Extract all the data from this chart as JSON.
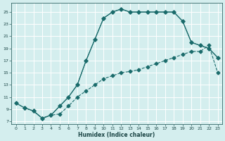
{
  "xlabel": "Humidex (Indice chaleur)",
  "bg_color": "#d4eeee",
  "line_color": "#1a6b6b",
  "grid_color": "#ffffff",
  "grid_minor_color": "#c8e4e4",
  "xlim": [
    -0.5,
    23.5
  ],
  "ylim": [
    6.5,
    26.5
  ],
  "xticks": [
    0,
    1,
    2,
    3,
    4,
    5,
    6,
    7,
    8,
    9,
    10,
    11,
    12,
    13,
    14,
    15,
    16,
    17,
    18,
    19,
    20,
    21,
    22,
    23
  ],
  "yticks": [
    7,
    9,
    11,
    13,
    15,
    17,
    19,
    21,
    23,
    25
  ],
  "curve1_x": [
    0,
    1,
    2,
    3,
    4,
    5,
    6,
    7,
    8,
    9,
    10,
    11,
    12,
    13,
    14,
    15,
    16,
    17,
    18,
    19,
    20,
    21,
    22,
    23
  ],
  "curve1_y": [
    10,
    9.2,
    8.7,
    7.5,
    8.0,
    8.2,
    9.5,
    11,
    12,
    13,
    14,
    14.5,
    15,
    15.2,
    15.5,
    16,
    16.5,
    17,
    17.5,
    18,
    18.5,
    18.5,
    19.5,
    15
  ],
  "curve2_x": [
    0,
    1,
    2,
    3,
    4,
    5,
    6,
    7,
    8,
    9,
    10,
    11,
    12,
    13,
    14,
    15,
    16,
    17,
    18,
    19,
    20,
    21,
    22,
    23
  ],
  "curve2_y": [
    10,
    9.2,
    8.7,
    7.5,
    8.0,
    9.5,
    11,
    13,
    17,
    20.5,
    24,
    25,
    25.5,
    25,
    25,
    25,
    25,
    25,
    25,
    23.5,
    20,
    19.5,
    19,
    17.5
  ],
  "curve3_x": [
    1,
    2,
    3,
    4,
    5,
    6,
    7,
    8,
    9,
    10,
    11,
    12,
    13,
    14,
    15,
    16,
    17,
    18,
    19,
    20,
    21,
    22,
    23
  ],
  "curve3_y": [
    9.2,
    8.7,
    7.5,
    8.0,
    9.5,
    11,
    13,
    17,
    20.5,
    24,
    25,
    25.5,
    25,
    25,
    25,
    25,
    25,
    25,
    23.5,
    20,
    19.5,
    19,
    17.5
  ]
}
